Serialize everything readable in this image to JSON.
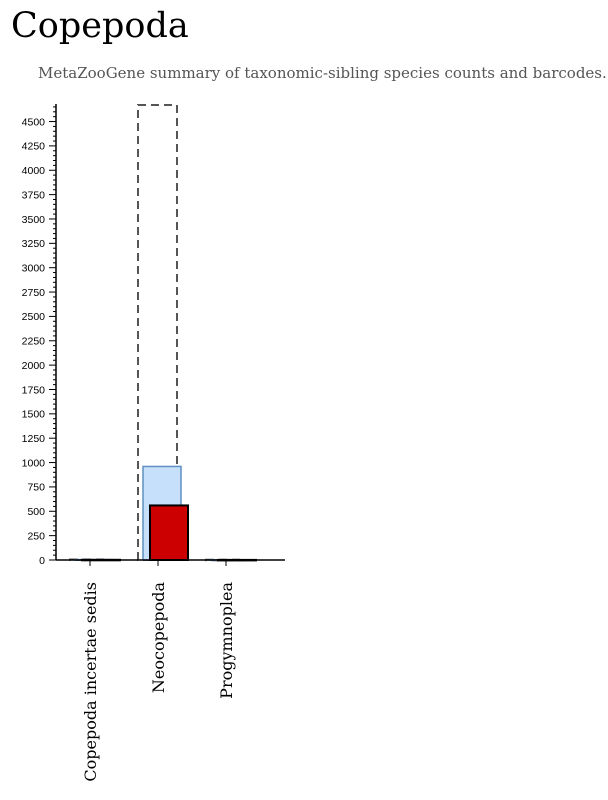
{
  "page": {
    "title": "Copepoda",
    "subtitle": "MetaZooGene summary of taxonomic-sibling species counts and barcodes."
  },
  "colors": {
    "outline_dashed": "#555555",
    "bar_light_fill": "#c6e0fb",
    "bar_light_stroke": "#5f8fc4",
    "bar_red_fill": "#cc0000",
    "bar_red_stroke": "#000000",
    "axis": "#000000"
  },
  "chart_data": {
    "type": "bar",
    "categories": [
      "Copepoda incertae sedis",
      "Neocopepoda",
      "Progymnoplea"
    ],
    "series": [
      {
        "style": "dashed-outline",
        "values": [
          5,
          4670,
          3
        ]
      },
      {
        "style": "light-blue",
        "values": [
          4,
          960,
          2
        ]
      },
      {
        "style": "red",
        "values": [
          2,
          560,
          1
        ]
      }
    ],
    "ylim": [
      0,
      4680
    ],
    "yticks": [
      0,
      250,
      500,
      750,
      1000,
      1250,
      1500,
      1750,
      2000,
      2250,
      2500,
      2750,
      3000,
      3250,
      3500,
      3750,
      4000,
      4250,
      4500
    ],
    "minor_tick_step": 50,
    "xlabel": "",
    "ylabel": "",
    "grid": false,
    "legend": "none"
  }
}
